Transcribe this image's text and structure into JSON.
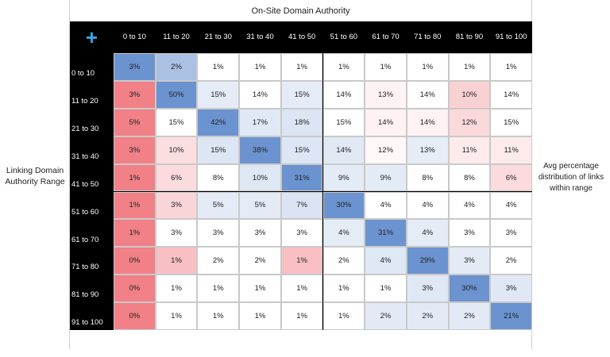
{
  "chart_data": {
    "type": "heatmap",
    "title": "On-Site Domain Authority",
    "ylabel": "Linking Domain Authority Range",
    "legend_note": "Avg percentage distribution of links within range",
    "corner_icon": "plus-icon",
    "corner_symbol": "+",
    "columns": [
      "0 to 10",
      "11 to 20",
      "21 to 30",
      "31 to 40",
      "41 to 50",
      "51 to 60",
      "61 to 70",
      "71 to 80",
      "81 to 90",
      "91 to 100"
    ],
    "rows": [
      "0 to 10",
      "11 to 20",
      "21 to 30",
      "31 to 40",
      "41 to 50",
      "51 to 60",
      "61 to 70",
      "71 to 80",
      "81 to 90",
      "91 to 100"
    ],
    "values": [
      [
        3,
        2,
        1,
        1,
        1,
        1,
        1,
        1,
        1,
        1
      ],
      [
        3,
        50,
        15,
        14,
        15,
        14,
        13,
        14,
        10,
        14
      ],
      [
        5,
        15,
        42,
        17,
        18,
        15,
        14,
        14,
        12,
        15
      ],
      [
        3,
        10,
        15,
        38,
        15,
        14,
        12,
        13,
        11,
        11
      ],
      [
        1,
        6,
        8,
        10,
        31,
        9,
        9,
        8,
        8,
        6
      ],
      [
        1,
        3,
        5,
        5,
        7,
        30,
        4,
        4,
        4,
        4
      ],
      [
        1,
        3,
        3,
        3,
        3,
        4,
        31,
        4,
        3,
        3
      ],
      [
        0,
        1,
        2,
        2,
        1,
        2,
        4,
        29,
        3,
        2
      ],
      [
        0,
        1,
        1,
        1,
        1,
        1,
        1,
        3,
        30,
        3
      ],
      [
        0,
        1,
        1,
        1,
        1,
        1,
        2,
        2,
        2,
        21
      ]
    ],
    "value_suffix": "%",
    "colors": {
      "low": "#ee6a72",
      "mid": "#ffffff",
      "high": "#6b93cf",
      "header_bg": "#000000",
      "header_text": "#ffffff",
      "corner": "#3aa6ea"
    }
  }
}
